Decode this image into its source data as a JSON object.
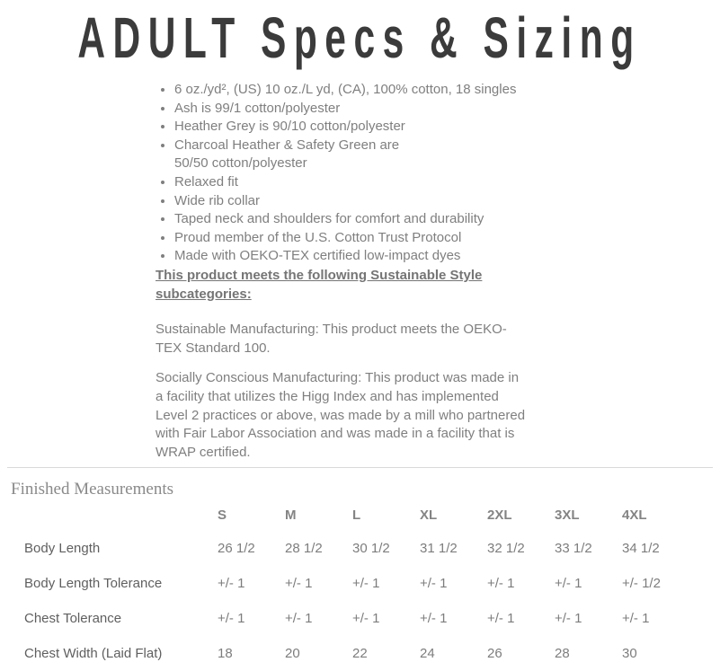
{
  "page": {
    "title": "ADULT Specs & Sizing"
  },
  "colors": {
    "title_text": "#3b3b3b",
    "body_text": "#7f7f7f",
    "divider": "#d9d9d9"
  },
  "specs": {
    "bullets": [
      "6 oz./yd², (US) 10 oz./L yd, (CA), 100% cotton, 18 singles",
      "Ash is 99/1 cotton/polyester",
      "Heather Grey is 90/10 cotton/polyester",
      "Charcoal Heather & Safety Green are\n50/50 cotton/polyester",
      "Relaxed fit",
      "Wide rib collar",
      "Taped neck and shoulders for comfort and durability",
      "Proud member of the U.S. Cotton Trust Protocol",
      "Made with OEKO-TEX certified low-impact dyes"
    ],
    "sustainable_heading": "This product meets the following Sustainable Style\nsubcategories:",
    "paragraphs": [
      "Sustainable Manufacturing: This product meets the OEKO-\nTEX Standard 100.",
      "Socially Conscious Manufacturing: This product was made in\na facility that utilizes the Higg Index and has implemented\nLevel 2 practices or above, was made by a mill who partnered\nwith Fair Labor Association and was made in a facility that is\nWRAP certified."
    ]
  },
  "measurements": {
    "section_title": "Finished Measurements",
    "columns": [
      "S",
      "M",
      "L",
      "XL",
      "2XL",
      "3XL",
      "4XL"
    ],
    "rows": [
      {
        "label": "Body Length",
        "values": [
          "26 1/2",
          "28 1/2",
          "30 1/2",
          "31 1/2",
          "32 1/2",
          "33 1/2",
          "34 1/2"
        ]
      },
      {
        "label": "Body Length Tolerance",
        "values": [
          "+/- 1",
          "+/- 1",
          "+/- 1",
          "+/- 1",
          "+/- 1",
          "+/- 1",
          "+/- 1/2"
        ]
      },
      {
        "label": "Chest Tolerance",
        "values": [
          "+/- 1",
          "+/- 1",
          "+/- 1",
          "+/- 1",
          "+/- 1",
          "+/- 1",
          "+/- 1"
        ]
      },
      {
        "label": "Chest Width (Laid Flat)",
        "values": [
          "18",
          "20",
          "22",
          "24",
          "26",
          "28",
          "30"
        ]
      }
    ]
  }
}
